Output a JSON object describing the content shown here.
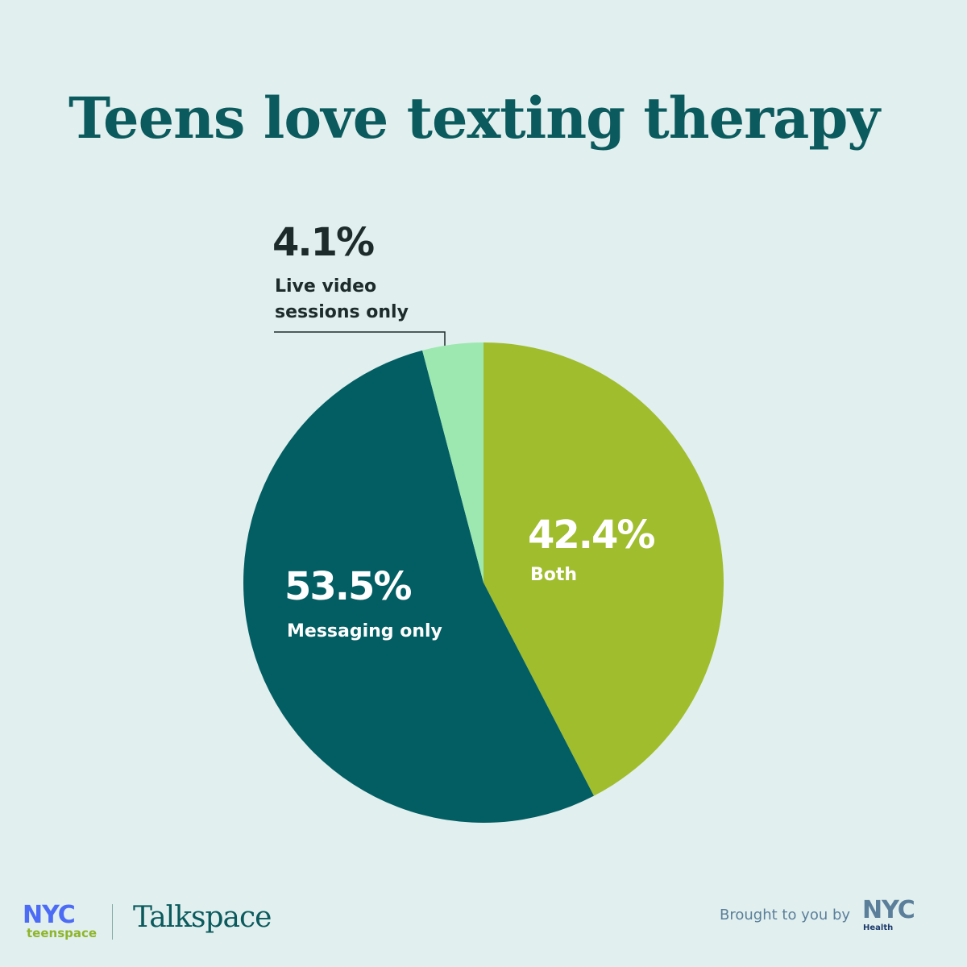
{
  "chart_data": {
    "type": "pie",
    "title": "Teens love texting therapy",
    "categories": [
      "Both",
      "Messaging only",
      "Live video sessions only"
    ],
    "values": [
      42.4,
      53.5,
      4.1
    ],
    "value_labels": [
      "42.4%",
      "53.5%",
      "4.1%"
    ],
    "colors": [
      "#a0bd2e",
      "#025e63",
      "#9de8b0"
    ]
  },
  "footer": {
    "left_logo": "NYC",
    "left_logo_sub": "teenspace",
    "partner": "Talkspace",
    "credit": "Brought to you by",
    "right_logo": "NYC",
    "right_logo_sub": "Health"
  }
}
